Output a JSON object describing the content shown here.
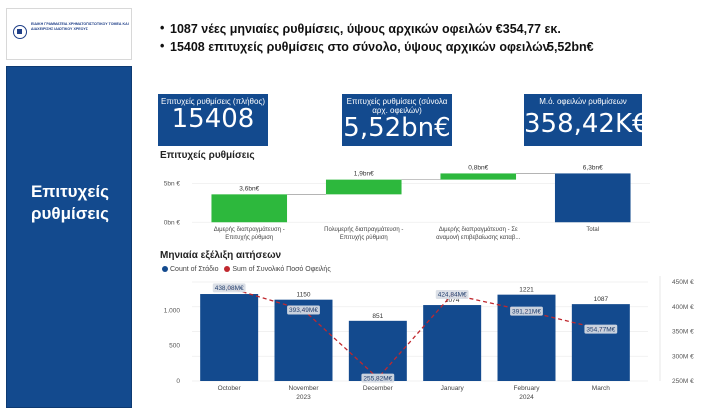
{
  "sidebar": {
    "org_name": "ΕΙΔΙΚΗ ΓΡΑΜΜΑΤΕΙΑ ΧΡΗΜΑΤΟΠΙΣΤΩΤΙΚΟΥ ΤΟΜΕΑ ΚΑΙ ΔΙΑΧΕΙΡΙΣΗΣ ΙΔΙΩΤΙΚΟΥ ΧΡΕΟΥΣ",
    "title_line1": "Επιτυχείς",
    "title_line2": "ρυθμίσεις"
  },
  "header": {
    "bullet1": "1087 νέες μηνιαίες ρυθμίσεις, ύψους αρχικών οφειλών €354,77 εκ.",
    "bullet2": "15408  επιτυχείς ρυθμίσεις στο σύνολο, ύψους αρχικών οφειλών",
    "bullet2_value": "5,52bn€"
  },
  "kpis": [
    {
      "label": "Επιτυχείς ρυθμίσεις (πλήθος)",
      "value": "15408"
    },
    {
      "label": "Επιτυχείς ρυθμίσεις (σύνολα αρχ. οφειλών)",
      "value": "5,52bn€"
    },
    {
      "label": "Μ.ό. οφειλών ρυθμίσεων",
      "value": "358,42K€"
    }
  ],
  "waterfall": {
    "title": "Επιτυχείς ρυθμίσεις",
    "colors": {
      "step": "#2db83d",
      "total": "#134a8e"
    },
    "yticks": [
      "5bn €",
      "0bn €"
    ]
  },
  "monthly": {
    "title": "Μηνιαία εξέλιξη αιτήσεων",
    "legend": [
      {
        "label": "Count of Στάδιο",
        "color": "#134a8e"
      },
      {
        "label": "Sum of Συνολικό Ποσό Οφειλής",
        "color": "#c0282e"
      }
    ],
    "left_ticks": [
      "1.000",
      "500",
      "0"
    ],
    "right_ticks": [
      "450M €",
      "400M €",
      "350M €",
      "300M €",
      "250M €"
    ],
    "months": [
      "October",
      "November",
      "December",
      "January",
      "February",
      "March"
    ],
    "year_labels": [
      "2023",
      "2024"
    ]
  },
  "chart_data": [
    {
      "type": "bar",
      "title": "Επιτυχείς ρυθμίσεις",
      "chart_subtype": "waterfall",
      "categories": [
        "Διμερής διαπραγμάτευση - Επιτυχής ρύθμιση",
        "Πολυμερής διαπραγμάτευση - Επιτυχής ρύθμιση",
        "Διμερής διαπραγμάτευση - Σε αναμονή επιβεβαίωσης καταβ...",
        "Total"
      ],
      "values": [
        3.6,
        1.9,
        0.8,
        6.3
      ],
      "data_labels": [
        "3,6bn€",
        "1,9bn€",
        "0,8bn€",
        "6,3bn€"
      ],
      "unit": "bn €",
      "ylim": [
        -1,
        7
      ],
      "legend": "none"
    },
    {
      "type": "bar",
      "title": "Μηνιαία εξέλιξη αιτήσεων",
      "categories": [
        "October",
        "November",
        "December",
        "January",
        "February",
        "March"
      ],
      "series": [
        {
          "name": "Count of Στάδιο",
          "type": "bar",
          "axis": "left",
          "values": [
            1230,
            1150,
            851,
            1074,
            1221,
            1087
          ],
          "labels": [
            "1230",
            "1150",
            "851",
            "1074",
            "1221",
            "1087"
          ]
        },
        {
          "name": "Sum of Συνολικό Ποσό Οφειλής",
          "type": "line",
          "axis": "right",
          "values": [
            438.08,
            393.49,
            255.82,
            424.84,
            391.21,
            354.77
          ],
          "labels": [
            "438,08M€",
            "393,49M€",
            "255,82M€",
            "424,84M€",
            "391,21M€",
            "354,77M€"
          ]
        }
      ],
      "ylim_left": [
        0,
        1400
      ],
      "ylim_right": [
        250,
        450
      ],
      "legend": "top-left"
    }
  ]
}
